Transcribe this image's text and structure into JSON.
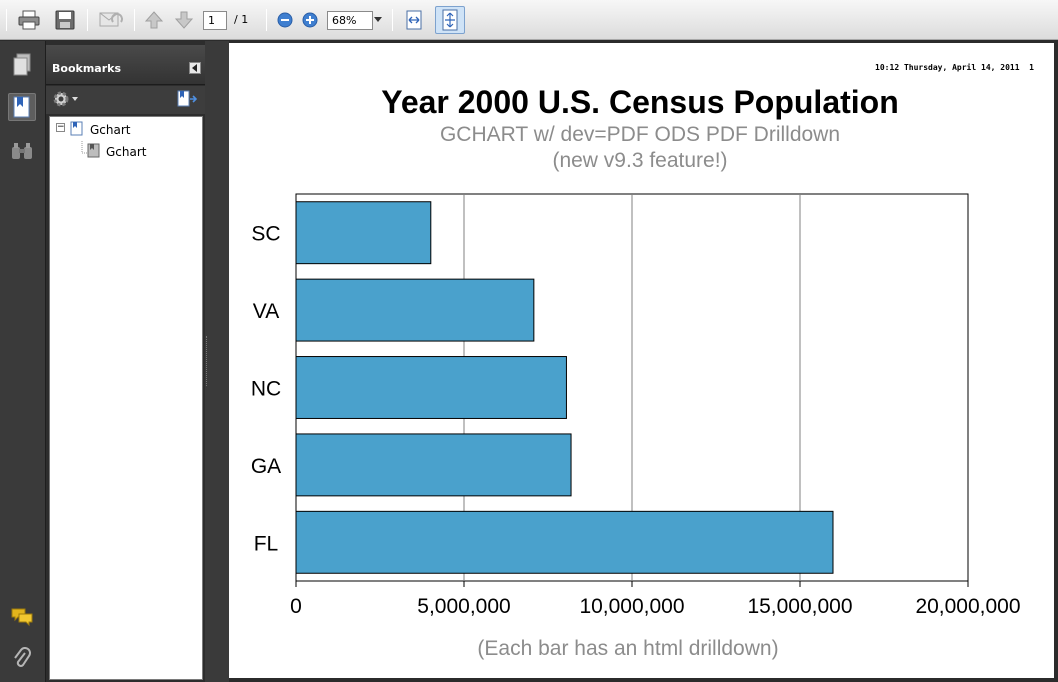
{
  "toolbar": {
    "current_page": "1",
    "page_total": "/ 1",
    "zoom_value": "68%"
  },
  "icons": {
    "print": "print-icon",
    "save": "save-icon",
    "email": "email-icon",
    "prev_page": "arrow-up-icon",
    "next_page": "arrow-down-icon",
    "zoom_out": "zoom-out-icon",
    "zoom_in": "zoom-in-icon",
    "fit_width": "fit-width-icon",
    "fit_page": "fit-page-icon",
    "pages_panel": "pages-icon",
    "bookmarks_panel": "bookmark-icon",
    "search_panel": "binoculars-icon",
    "comments_panel": "comments-icon",
    "attachments_panel": "paperclip-icon"
  },
  "bookmarks": {
    "title": "Bookmarks",
    "tree": [
      {
        "label": "Gchart",
        "children": [
          {
            "label": "Gchart"
          }
        ]
      }
    ]
  },
  "document": {
    "stamp": "10:12 Thursday, April 14, 2011  1"
  },
  "chart_data": {
    "type": "bar",
    "orientation": "horizontal",
    "title": "Year 2000 U.S. Census Population",
    "subtitle_lines": [
      "GCHART w/ dev=PDF ODS PDF Drilldown",
      "(new v9.3 feature!)"
    ],
    "footnote": "(Each bar has an html drilldown)",
    "categories": [
      "SC",
      "VA",
      "NC",
      "GA",
      "FL"
    ],
    "values": [
      4012000,
      7079000,
      8049000,
      8186000,
      15982000
    ],
    "xlim": [
      0,
      20000000
    ],
    "xticks": [
      0,
      5000000,
      10000000,
      15000000,
      20000000
    ],
    "xtick_labels": [
      "0",
      "5,000,000",
      "10,000,000",
      "15,000,000",
      "20,000,000"
    ],
    "bar_color": "#4aa1cc",
    "grid": true
  }
}
